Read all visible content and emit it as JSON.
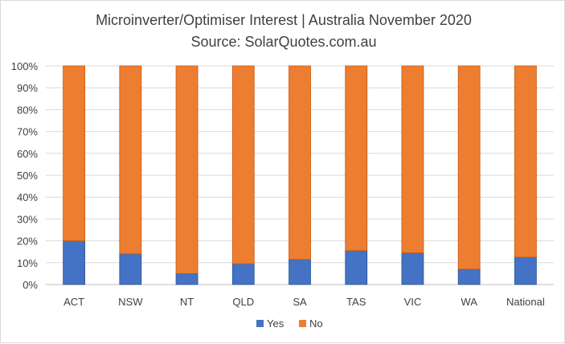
{
  "chart_data": {
    "type": "bar",
    "stacked": true,
    "title": "Microinverter/Optimiser Interest | Australia November 2020",
    "subtitle": "Source: SolarQuotes.com.au",
    "categories": [
      "ACT",
      "NSW",
      "NT",
      "QLD",
      "SA",
      "TAS",
      "VIC",
      "WA",
      "National"
    ],
    "series": [
      {
        "name": "Yes",
        "color": "#4472c4",
        "values": [
          20,
          14,
          5,
          9.5,
          11.5,
          15.5,
          14.5,
          7,
          12.5
        ]
      },
      {
        "name": "No",
        "color": "#ed7d31",
        "values": [
          80,
          86,
          95,
          90.5,
          88.5,
          84.5,
          85.5,
          93,
          87.5
        ]
      }
    ],
    "ylim": [
      0,
      100
    ],
    "yticks": [
      "0%",
      "10%",
      "20%",
      "30%",
      "40%",
      "50%",
      "60%",
      "70%",
      "80%",
      "90%",
      "100%"
    ],
    "grid": true,
    "legend": "bottom"
  }
}
